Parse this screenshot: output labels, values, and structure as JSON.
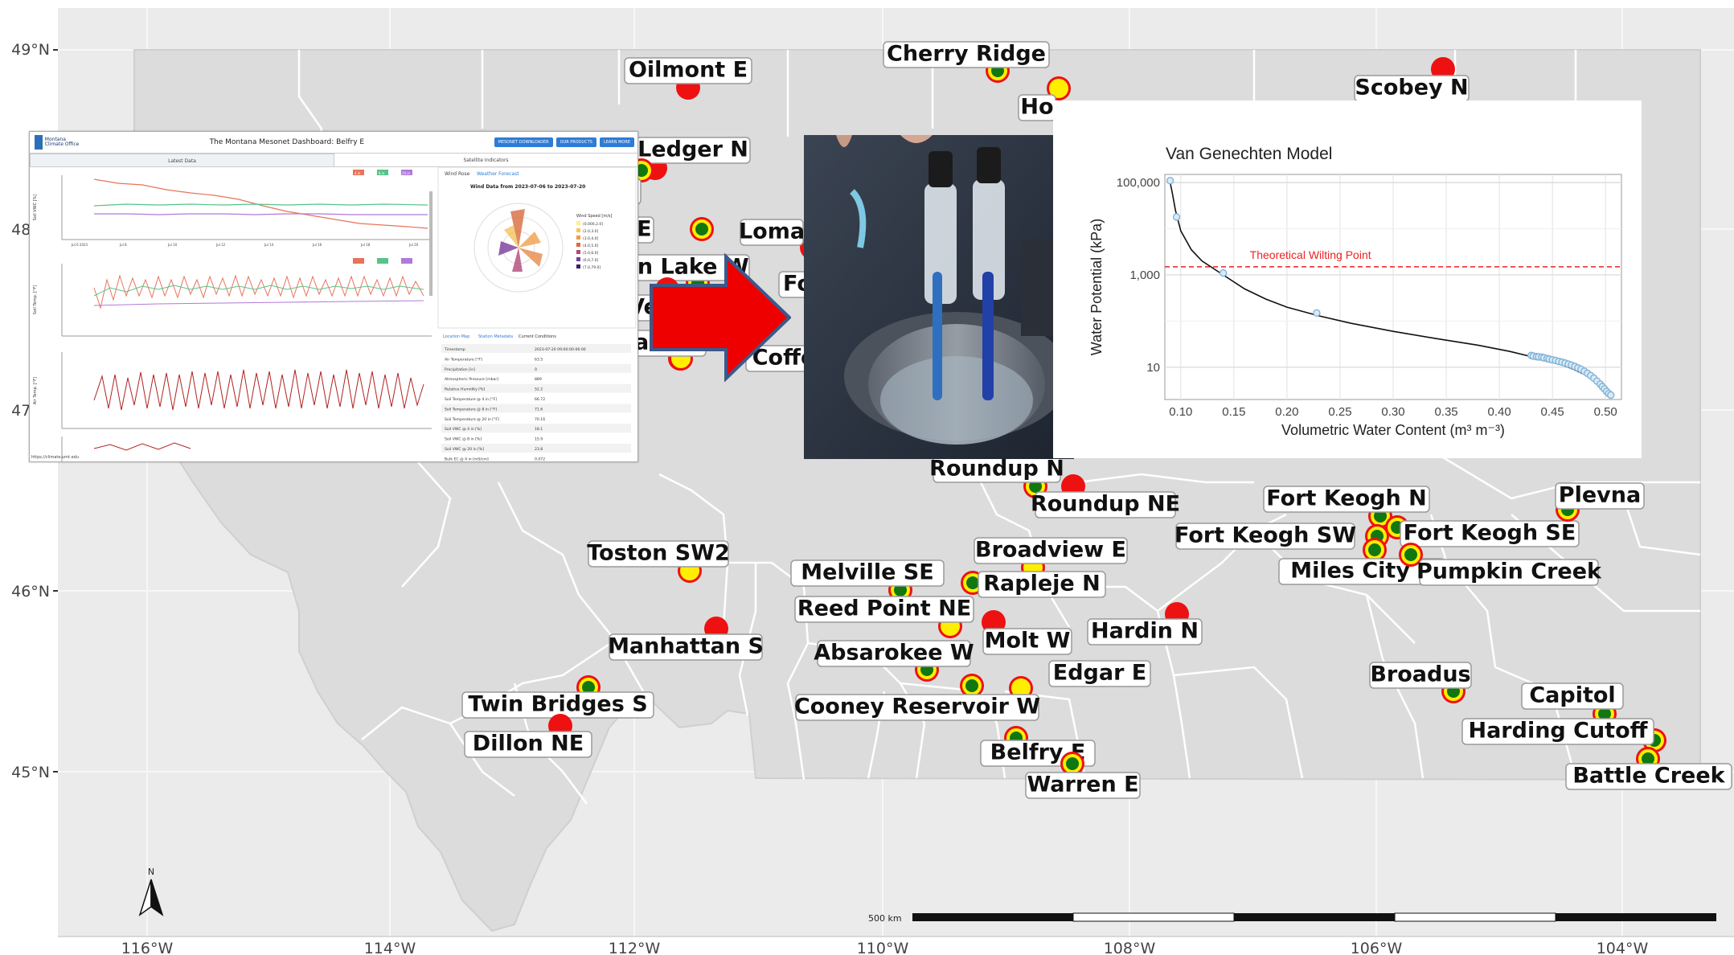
{
  "map": {
    "lat_ticks": [
      "49°N",
      "48°N",
      "47°N",
      "46°N",
      "45°N"
    ],
    "lon_ticks": [
      "116°W",
      "114°W",
      "112°W",
      "110°W",
      "108°W",
      "106°W",
      "104°W"
    ],
    "north_label": "N",
    "scale_label": "500 km",
    "colors": {
      "land": "#dcdcdc",
      "county_line": "#ffffff",
      "bg": "#ebebeb",
      "grid": "#ffffff",
      "station_red": "#ee1111",
      "station_yellow": "#ffee00",
      "station_green": "#117711"
    }
  },
  "stations": [
    {
      "name": "Oilmont E",
      "style": "red"
    },
    {
      "name": "Cherry Ridge",
      "style": "ring"
    },
    {
      "name": "Scobey N",
      "style": "red"
    },
    {
      "name": "Ledger N",
      "style": "red"
    },
    {
      "name": "Loma",
      "style": "red"
    },
    {
      "name": "Coffe",
      "style": "yellow"
    },
    {
      "name": "Roundup N",
      "style": "ring"
    },
    {
      "name": "Roundup NE",
      "style": "red"
    },
    {
      "name": "Fort Keogh N",
      "style": "ring"
    },
    {
      "name": "Fort Keogh SW",
      "style": "ring"
    },
    {
      "name": "Fort Keogh SE",
      "style": "ring"
    },
    {
      "name": "Plevna",
      "style": "ring"
    },
    {
      "name": "Toston SW2",
      "style": "yellow"
    },
    {
      "name": "Broadview E",
      "style": "yellow"
    },
    {
      "name": "Melville SE",
      "style": "ring"
    },
    {
      "name": "Rapleje N",
      "style": "ring"
    },
    {
      "name": "Miles City S",
      "style": "ring"
    },
    {
      "name": "Pumpkin Creek",
      "style": "ring"
    },
    {
      "name": "Reed Point NE",
      "style": "yellow"
    },
    {
      "name": "Manhattan S",
      "style": "red"
    },
    {
      "name": "Molt W",
      "style": "red"
    },
    {
      "name": "Hardin N",
      "style": "red"
    },
    {
      "name": "Absarokee W",
      "style": "ring"
    },
    {
      "name": "Edgar E",
      "style": "yellow"
    },
    {
      "name": "Broadus",
      "style": "ring"
    },
    {
      "name": "Twin Bridges S",
      "style": "ring"
    },
    {
      "name": "Cooney Reservoir W",
      "style": "ring"
    },
    {
      "name": "Capitol",
      "style": "ring"
    },
    {
      "name": "Harding Cutoff",
      "style": "ring"
    },
    {
      "name": "Dillon NE",
      "style": "red"
    },
    {
      "name": "Belfry E",
      "style": "ring"
    },
    {
      "name": "Warren E",
      "style": "ring"
    },
    {
      "name": "Battle Creek",
      "style": "ring"
    },
    {
      "name": "Ho",
      "style": "yellow"
    },
    {
      "name": "NE",
      "style": "ring"
    },
    {
      "name": "on Lake W",
      "style": "ring"
    },
    {
      "name": "Ve",
      "style": "red"
    },
    {
      "name": "cado E",
      "style": "yellow"
    },
    {
      "name": "Fo",
      "style": "red"
    },
    {
      "name": "d",
      "style": "ring"
    }
  ],
  "dashboard": {
    "logo_text": "Montana Climate Office",
    "title": "The Montana Mesonet Dashboard: Belfry E",
    "buttons": [
      "MESONET DOWNLOADER",
      "OUR PRODUCTS",
      "LEARN MORE"
    ],
    "tabs": [
      "Latest Data",
      "Satellite Indicators"
    ],
    "right_tabs": [
      "Wind Rose",
      "Weather Forecast"
    ],
    "wind_title": "Wind Data from 2023-07-06 to 2023-07-20",
    "wind_legend_title": "Wind Speed [m/s]",
    "wind_legend": [
      "(0.000,2.0]",
      "(2.0,3.0]",
      "(3.0,4.0]",
      "(4.0,5.0]",
      "(5.0,6.0]",
      "(6.0,7.0]",
      "(7.0,79.0]"
    ],
    "lower_tabs": [
      "Location Map",
      "Station Metadata",
      "Current Conditions"
    ],
    "conditions": [
      [
        "Timestamp",
        "2023-07-20 09:00:00-06:00"
      ],
      [
        "Air Temperature [°F]",
        "63.5"
      ],
      [
        "Precipitation [in]",
        "0"
      ],
      [
        "Atmospheric Pressure [mbar]",
        "889"
      ],
      [
        "Relative Humidity [%]",
        "52.2"
      ],
      [
        "Soil Temperature @ 4 in [°F]",
        "66.72"
      ],
      [
        "Soil Temperature @ 8 in [°F]",
        "71.6"
      ],
      [
        "Soil Temperature @ 20 in [°F]",
        "70.16"
      ],
      [
        "Soil VWC @ 4 in [%]",
        "18.1"
      ],
      [
        "Soil VWC @ 8 in [%]",
        "15.9"
      ],
      [
        "Soil VWC @ 20 in [%]",
        "23.8"
      ],
      [
        "Bulk EC @ 4 in [mS/cm]",
        "0.072"
      ]
    ],
    "footer_url": "https://climate.umt.edu",
    "chart_ylabels": [
      "Soil VWC [%]",
      "Soil Temp. [°F]",
      "Air Temp. [°F]"
    ],
    "chart_xticks": [
      "Jul 6\n2023",
      "Jul 8",
      "Jul 10",
      "Jul 12",
      "Jul 14",
      "Jul 16",
      "Jul 18",
      "Jul 20"
    ],
    "legend_badges": [
      "4 in",
      "8 in",
      "20 in"
    ]
  },
  "chart_data": {
    "type": "line",
    "title": "Van Genechten Model",
    "xlabel": "Volumetric Water Content (m³ m⁻³)",
    "ylabel": "Water Potential (kPa)",
    "y_scale": "log",
    "xlim": [
      0.085,
      0.515
    ],
    "ylim": [
      2,
      150000
    ],
    "x_ticks": [
      "0.10",
      "0.15",
      "0.20",
      "0.25",
      "0.30",
      "0.35",
      "0.40",
      "0.45",
      "0.50"
    ],
    "y_ticks": [
      "10",
      "1,000",
      "100,000"
    ],
    "reference_line": {
      "label": "Theoretical Wilting Point",
      "y": 1500,
      "color": "#ee2222"
    },
    "series": [
      {
        "type": "line",
        "color": "#111111",
        "x": [
          0.09,
          0.092,
          0.095,
          0.1,
          0.11,
          0.12,
          0.14,
          0.16,
          0.18,
          0.2,
          0.23,
          0.26,
          0.3,
          0.34,
          0.38,
          0.41,
          0.43,
          0.44,
          0.45,
          0.46,
          0.47,
          0.48,
          0.49,
          0.495,
          0.5,
          0.505
        ],
        "y": [
          100000,
          60000,
          25000,
          9000,
          3500,
          2000,
          1000,
          500,
          300,
          200,
          130,
          90,
          60,
          42,
          30,
          22,
          17,
          15,
          13,
          11,
          9,
          7,
          5.2,
          4.2,
          3.2,
          2.6
        ]
      },
      {
        "type": "scatter",
        "color": "#7fb3d8",
        "x": [
          0.09,
          0.096,
          0.14,
          0.228,
          0.43,
          0.432,
          0.435,
          0.437,
          0.44,
          0.442,
          0.445,
          0.447,
          0.45,
          0.453,
          0.456,
          0.459,
          0.462,
          0.465,
          0.468,
          0.471,
          0.474,
          0.477,
          0.48,
          0.483,
          0.486,
          0.489,
          0.492,
          0.495,
          0.497,
          0.499,
          0.501,
          0.503,
          0.505
        ],
        "y": [
          110000,
          18000,
          1100,
          150,
          18,
          17.5,
          17,
          16.8,
          16.5,
          16,
          15.5,
          15,
          14.5,
          14,
          13.4,
          12.9,
          12.3,
          11.7,
          11.1,
          10.4,
          9.7,
          9,
          8.2,
          7.4,
          6.6,
          5.8,
          5,
          4.3,
          3.8,
          3.4,
          3,
          2.7,
          2.5
        ]
      }
    ]
  }
}
